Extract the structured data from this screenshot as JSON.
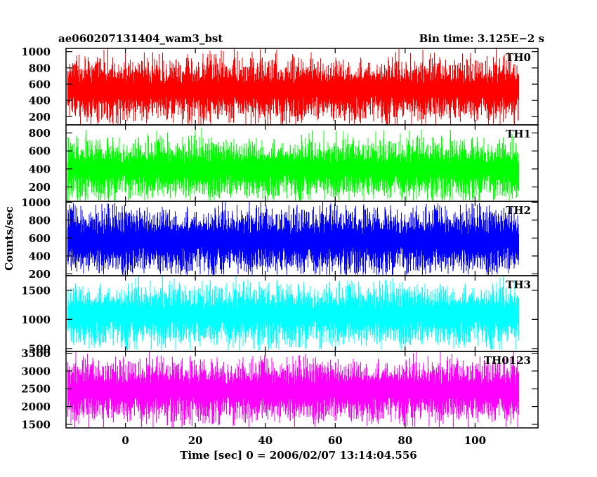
{
  "chart_data": {
    "type": "line",
    "title": "ae060207131404_wam3_bst",
    "subtitle": "Bin time: 3.125E−2 s",
    "xlabel": "Time [sec] 0 = 2006/02/07 13:14:04.556",
    "ylabel": "Counts/sec",
    "xlim": [
      -17,
      118
    ],
    "x_ticks": [
      0,
      20,
      40,
      60,
      80,
      100
    ],
    "x_tick_labels": [
      "0",
      "20",
      "40",
      "60",
      "80",
      "100"
    ],
    "data_x_range": [
      -16.5,
      112.5
    ],
    "grid": false,
    "panels": [
      {
        "name": "TH0",
        "color": "#ff0000",
        "ylim": [
          100,
          1040
        ],
        "y_ticks": [
          200,
          400,
          600,
          800,
          1000
        ],
        "y_tick_labels": [
          "200",
          "400",
          "600",
          "800",
          "1000"
        ],
        "mean": 530,
        "typical_low": 250,
        "typical_high": 800,
        "min": 100,
        "max": 1040
      },
      {
        "name": "TH1",
        "color": "#00ff00",
        "ylim": [
          40,
          890
        ],
        "y_ticks": [
          200,
          400,
          600,
          800
        ],
        "y_tick_labels": [
          "200",
          "400",
          "600",
          "800"
        ],
        "mean": 400,
        "typical_low": 180,
        "typical_high": 650,
        "min": 50,
        "max": 880
      },
      {
        "name": "TH2",
        "color": "#0000ff",
        "ylim": [
          180,
          1010
        ],
        "y_ticks": [
          200,
          400,
          600,
          800,
          1000
        ],
        "y_tick_labels": [
          "200",
          "400",
          "600",
          "800",
          "1000"
        ],
        "mean": 570,
        "typical_low": 320,
        "typical_high": 850,
        "min": 190,
        "max": 1010
      },
      {
        "name": "TH3",
        "color": "#00ffff",
        "ylim": [
          450,
          1750
        ],
        "y_ticks": [
          500,
          1000,
          1500
        ],
        "y_tick_labels": [
          "500",
          "1000",
          "1500"
        ],
        "mean": 1080,
        "typical_low": 700,
        "typical_high": 1450,
        "min": 470,
        "max": 1740
      },
      {
        "name": "TH0123",
        "color": "#ff00ff",
        "ylim": [
          1400,
          3550
        ],
        "y_ticks": [
          1500,
          2000,
          2500,
          3000,
          3500
        ],
        "y_tick_labels": [
          "1500",
          "2000",
          "2500",
          "3000",
          "3500"
        ],
        "mean": 2450,
        "typical_low": 1800,
        "typical_high": 3050,
        "min": 1420,
        "max": 3530
      }
    ]
  }
}
